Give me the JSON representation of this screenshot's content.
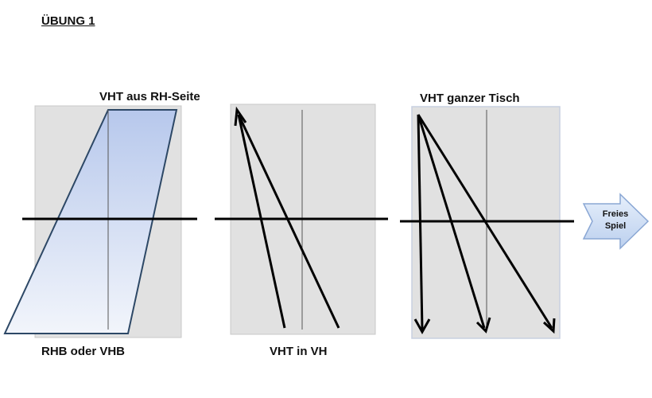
{
  "page": {
    "title": "ÜBUNG 1"
  },
  "panels": [
    {
      "label_top": "VHT aus RH-Seite",
      "label_bottom": "RHB oder VHB"
    },
    {
      "label_top": "",
      "label_bottom": "VHT in VH"
    },
    {
      "label_top": "VHT ganzer Tisch",
      "label_bottom": ""
    }
  ],
  "next_arrow": {
    "line1": "Freies",
    "line2": "Spiel"
  },
  "colors": {
    "table_fill": "#e1e1e1",
    "table_border": "#c8c8c8",
    "zone_fill_top": "#b7c8ec",
    "zone_fill_bottom": "#f2f5fb",
    "zone_stroke": "#2d4866",
    "arrow_fill": "#cfdff5",
    "arrow_stroke": "#8aa7d4",
    "line": "#000000"
  }
}
